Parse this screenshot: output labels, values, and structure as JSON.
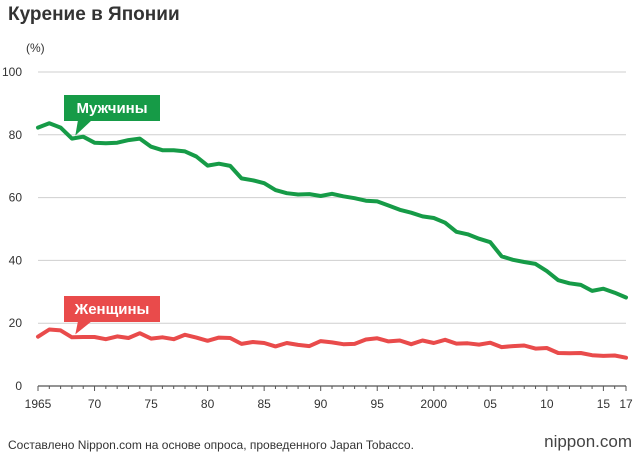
{
  "title": "Курение в Японии",
  "footer": "Составлено Nippon.com на основе опроса, проведенного Japan Tobacco.",
  "brand": "nippon.com",
  "chart_data": {
    "type": "line",
    "title": "Курение в Японии",
    "ylabel": "(%)",
    "xlabel": "",
    "ylim": [
      0,
      100
    ],
    "xlim": [
      1965,
      2017
    ],
    "y_ticks": [
      0,
      20,
      40,
      60,
      80,
      100
    ],
    "x_ticks": [
      1965,
      1970,
      1975,
      1980,
      1985,
      1990,
      1995,
      2000,
      2005,
      2010,
      2015,
      2017
    ],
    "x_tick_labels": [
      "1965",
      "70",
      "75",
      "80",
      "85",
      "90",
      "95",
      "2000",
      "05",
      "10",
      "15",
      "17"
    ],
    "grid": true,
    "x": [
      1965,
      1966,
      1967,
      1968,
      1969,
      1970,
      1971,
      1972,
      1973,
      1974,
      1975,
      1976,
      1977,
      1978,
      1979,
      1980,
      1981,
      1982,
      1983,
      1984,
      1985,
      1986,
      1987,
      1988,
      1989,
      1990,
      1991,
      1992,
      1993,
      1994,
      1995,
      1996,
      1997,
      1998,
      1999,
      2000,
      2001,
      2002,
      2003,
      2004,
      2005,
      2006,
      2007,
      2008,
      2009,
      2010,
      2011,
      2012,
      2013,
      2014,
      2015,
      2016,
      2017
    ],
    "series": [
      {
        "name": "Мужчины",
        "color": "#169b47",
        "values": [
          82.3,
          83.7,
          82.3,
          78.8,
          79.4,
          77.5,
          77.3,
          77.5,
          78.3,
          78.8,
          76.2,
          75.1,
          75.1,
          74.7,
          73.1,
          70.2,
          70.8,
          70.1,
          66.1,
          65.5,
          64.6,
          62.4,
          61.4,
          61.0,
          61.1,
          60.5,
          61.2,
          60.4,
          59.8,
          59.0,
          58.8,
          57.5,
          56.1,
          55.2,
          54.0,
          53.5,
          52.0,
          49.1,
          48.3,
          46.9,
          45.8,
          41.3,
          40.2,
          39.5,
          38.9,
          36.6,
          33.7,
          32.7,
          32.2,
          30.3,
          31.0,
          29.7,
          28.2
        ]
      },
      {
        "name": "Женщины",
        "color": "#e94b4b",
        "values": [
          15.7,
          18.0,
          17.7,
          15.5,
          15.6,
          15.6,
          14.9,
          15.8,
          15.3,
          16.8,
          15.1,
          15.5,
          14.9,
          16.3,
          15.4,
          14.4,
          15.4,
          15.3,
          13.4,
          14.0,
          13.7,
          12.6,
          13.7,
          13.1,
          12.7,
          14.3,
          13.9,
          13.3,
          13.4,
          14.8,
          15.2,
          14.2,
          14.5,
          13.3,
          14.5,
          13.7,
          14.7,
          13.5,
          13.6,
          13.2,
          13.8,
          12.4,
          12.7,
          12.9,
          11.9,
          12.1,
          10.5,
          10.4,
          10.5,
          9.8,
          9.6,
          9.7,
          9.0
        ]
      }
    ]
  }
}
